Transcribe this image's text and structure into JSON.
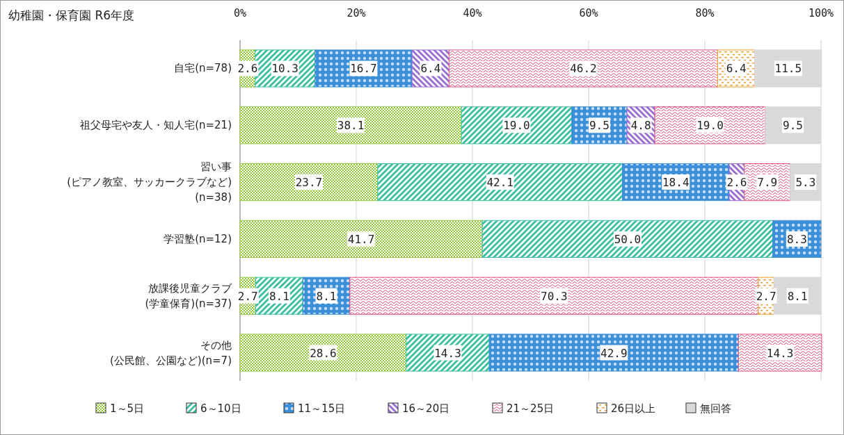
{
  "chart_data": {
    "type": "bar",
    "orientation": "horizontal",
    "stacked": true,
    "title": "幼稚園・保育園 R6年度",
    "categories": [
      "自宅(n=78)",
      "祖父母宅や友人・知人宅(n=21)",
      "習い事\n(ピアノ教室、サッカークラブなど)\n(n=38)",
      "学習塾(n=12)",
      "放課後児童クラブ\n(学童保育)(n=37)",
      "その他\n(公民館、公園など)(n=7)"
    ],
    "xlim": [
      0,
      100
    ],
    "xticks": [
      {
        "value": 0,
        "label": "0%"
      },
      {
        "value": 20,
        "label": "20%"
      },
      {
        "value": 40,
        "label": "40%"
      },
      {
        "value": 60,
        "label": "60%"
      },
      {
        "value": 80,
        "label": "80%"
      },
      {
        "value": 100,
        "label": "100%"
      }
    ],
    "grid": "x",
    "legend": "bottom",
    "series": [
      {
        "name": "1～5日",
        "color": "#92c83e",
        "values": [
          2.6,
          38.1,
          23.7,
          41.7,
          2.7,
          28.6
        ],
        "value_labels": [
          "2.6",
          "38.1",
          "23.7",
          "41.7",
          "2.7",
          "28.6"
        ]
      },
      {
        "name": "6～10日",
        "color": "#3cbfa0",
        "values": [
          10.3,
          19.0,
          42.1,
          50.0,
          8.1,
          14.3
        ],
        "value_labels": [
          "10.3",
          "19.0",
          "42.1",
          "50.0",
          "8.1",
          "14.3"
        ]
      },
      {
        "name": "11～15日",
        "color": "#3a8fd8",
        "values": [
          16.7,
          9.5,
          18.4,
          8.3,
          8.1,
          42.9
        ],
        "value_labels": [
          "16.7",
          "9.5",
          "18.4",
          "8.3",
          "8.1",
          "42.9"
        ]
      },
      {
        "name": "16～20日",
        "color": "#9a6fd0",
        "values": [
          6.4,
          4.8,
          2.6,
          null,
          null,
          null
        ],
        "value_labels": [
          "6.4",
          "4.8",
          "2.6",
          null,
          null,
          null
        ]
      },
      {
        "name": "21～25日",
        "color": "#e0507a",
        "values": [
          46.2,
          19.0,
          7.9,
          null,
          70.3,
          14.3
        ],
        "value_labels": [
          "46.2",
          "19.0",
          "7.9",
          null,
          "70.3",
          "14.3"
        ]
      },
      {
        "name": "26日以上",
        "color": "#f0a030",
        "values": [
          6.4,
          null,
          null,
          null,
          2.7,
          null
        ],
        "value_labels": [
          "6.4",
          null,
          null,
          null,
          "2.7",
          null
        ]
      },
      {
        "name": "無回答",
        "color": "#d9d9d9",
        "values": [
          11.5,
          9.5,
          5.3,
          null,
          8.1,
          null
        ],
        "value_labels": [
          "11.5",
          "9.5",
          "5.3",
          null,
          "8.1",
          null
        ]
      }
    ]
  }
}
